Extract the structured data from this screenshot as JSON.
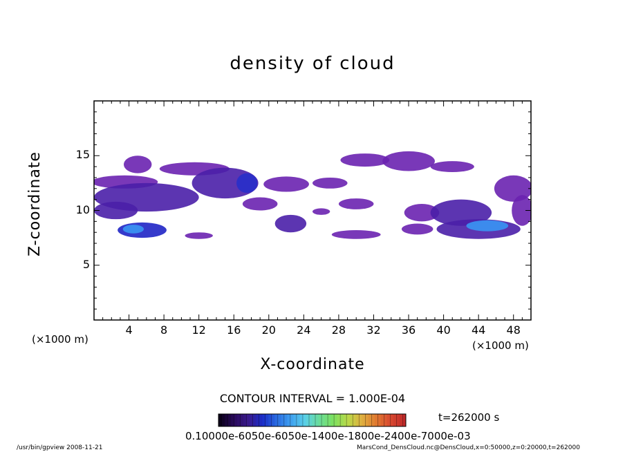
{
  "chart_data": {
    "type": "heatmap",
    "title": "density of cloud",
    "xlabel": "X-coordinate",
    "ylabel": "Z-coordinate",
    "x_unit_left": "(×1000 m)",
    "x_unit_right": "(×1000 m)",
    "xlim": [
      0,
      50
    ],
    "ylim": [
      0,
      20
    ],
    "x_ticks": [
      4,
      8,
      12,
      16,
      20,
      24,
      28,
      32,
      36,
      40,
      44,
      48
    ],
    "y_ticks": [
      5,
      10,
      15
    ],
    "contour_interval": "CONTOUR INTERVAL = 1.000E-04",
    "time_label": "t=262000 s",
    "colorbar_labels": "0.10000e-6050e-6050e-1400e-1800e-2400e-7000e-03",
    "colorbar_colors": [
      "#0b0019",
      "#2a0a5c",
      "#3a1a8c",
      "#1a2cc8",
      "#2a6be0",
      "#3fa0f0",
      "#5ad0e8",
      "#6adc9a",
      "#7ce060",
      "#b9d94a",
      "#e0b040",
      "#e07a30",
      "#d84a30",
      "#c02a2a"
    ],
    "cloud_regions": [
      {
        "type": "ellipse",
        "x": 3.5,
        "z": 12.6,
        "rx": 3.8,
        "rz": 0.6,
        "level": 1
      },
      {
        "type": "ellipse",
        "x": 5.0,
        "z": 14.2,
        "rx": 1.6,
        "rz": 0.8,
        "level": 1
      },
      {
        "type": "ellipse",
        "x": 6.0,
        "z": 11.2,
        "rx": 6.0,
        "rz": 1.3,
        "level": 2
      },
      {
        "type": "ellipse",
        "x": 2.5,
        "z": 10.0,
        "rx": 2.5,
        "rz": 0.8,
        "level": 2
      },
      {
        "type": "ellipse",
        "x": 11.5,
        "z": 13.8,
        "rx": 4.0,
        "rz": 0.6,
        "level": 1
      },
      {
        "type": "ellipse",
        "x": 15.0,
        "z": 12.5,
        "rx": 3.8,
        "rz": 1.4,
        "level": 2
      },
      {
        "type": "ellipse",
        "x": 17.5,
        "z": 12.5,
        "rx": 1.2,
        "rz": 0.9,
        "level": 3
      },
      {
        "type": "ellipse",
        "x": 19.0,
        "z": 10.6,
        "rx": 2.0,
        "rz": 0.6,
        "level": 1
      },
      {
        "type": "ellipse",
        "x": 5.5,
        "z": 8.2,
        "rx": 2.8,
        "rz": 0.7,
        "level": 3
      },
      {
        "type": "ellipse",
        "x": 4.5,
        "z": 8.3,
        "rx": 1.2,
        "rz": 0.4,
        "level": 4
      },
      {
        "type": "ellipse",
        "x": 12.0,
        "z": 7.7,
        "rx": 1.6,
        "rz": 0.3,
        "level": 1
      },
      {
        "type": "ellipse",
        "x": 22.0,
        "z": 12.4,
        "rx": 2.6,
        "rz": 0.7,
        "level": 1
      },
      {
        "type": "ellipse",
        "x": 27.0,
        "z": 12.5,
        "rx": 2.0,
        "rz": 0.5,
        "level": 1
      },
      {
        "type": "ellipse",
        "x": 22.5,
        "z": 8.8,
        "rx": 1.8,
        "rz": 0.8,
        "level": 2
      },
      {
        "type": "ellipse",
        "x": 26.0,
        "z": 9.9,
        "rx": 1.0,
        "rz": 0.3,
        "level": 1
      },
      {
        "type": "ellipse",
        "x": 30.0,
        "z": 7.8,
        "rx": 2.8,
        "rz": 0.4,
        "level": 1
      },
      {
        "type": "ellipse",
        "x": 30.0,
        "z": 10.6,
        "rx": 2.0,
        "rz": 0.5,
        "level": 1
      },
      {
        "type": "ellipse",
        "x": 31.0,
        "z": 14.6,
        "rx": 2.8,
        "rz": 0.6,
        "level": 1
      },
      {
        "type": "ellipse",
        "x": 36.0,
        "z": 14.5,
        "rx": 3.0,
        "rz": 0.9,
        "level": 1
      },
      {
        "type": "ellipse",
        "x": 41.0,
        "z": 14.0,
        "rx": 2.5,
        "rz": 0.5,
        "level": 1
      },
      {
        "type": "ellipse",
        "x": 37.5,
        "z": 9.8,
        "rx": 2.0,
        "rz": 0.8,
        "level": 1
      },
      {
        "type": "ellipse",
        "x": 42.0,
        "z": 9.8,
        "rx": 3.5,
        "rz": 1.2,
        "level": 2
      },
      {
        "type": "ellipse",
        "x": 37.0,
        "z": 8.3,
        "rx": 1.8,
        "rz": 0.5,
        "level": 1
      },
      {
        "type": "ellipse",
        "x": 44.0,
        "z": 8.3,
        "rx": 4.8,
        "rz": 0.9,
        "level": 2
      },
      {
        "type": "ellipse",
        "x": 45.0,
        "z": 8.6,
        "rx": 2.4,
        "rz": 0.5,
        "level": 4
      },
      {
        "type": "ellipse",
        "x": 48.0,
        "z": 12.0,
        "rx": 2.2,
        "rz": 1.2,
        "level": 1
      },
      {
        "type": "ellipse",
        "x": 49.0,
        "z": 10.0,
        "rx": 1.2,
        "rz": 1.4,
        "level": 1
      }
    ]
  },
  "footer": {
    "left": "/usr/bin/gpview  2008-11-21",
    "right": "MarsCond_DensCloud.nc@DensCloud,x=0:50000,z=0:20000,t=262000"
  }
}
